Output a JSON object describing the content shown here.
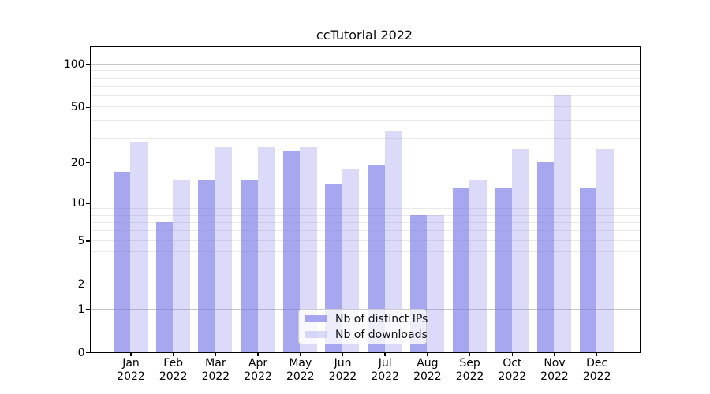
{
  "chart_data": {
    "type": "bar",
    "title": "ccTutorial 2022",
    "categories": [
      "Jan",
      "Feb",
      "Mar",
      "Apr",
      "May",
      "Jun",
      "Jul",
      "Aug",
      "Sep",
      "Oct",
      "Nov",
      "Dec"
    ],
    "category_year": "2022",
    "series": [
      {
        "name": "Nb of distinct IPs",
        "color": "rgba(122,122,232,0.66)",
        "values": [
          17,
          7,
          15,
          15,
          24,
          14,
          19,
          8,
          13,
          13,
          20,
          13
        ]
      },
      {
        "name": "Nb of downloads",
        "color": "rgba(122,122,232,0.27)",
        "values": [
          28,
          15,
          26,
          26,
          26,
          18,
          34,
          8,
          15,
          25,
          61,
          25
        ]
      }
    ],
    "yscale": "log1p",
    "ylim": [
      0,
      130
    ],
    "ytick_labels": [
      100,
      50,
      20,
      10,
      5,
      2,
      1,
      0
    ],
    "major_gridlines": [
      1,
      10,
      100
    ],
    "minor_gridlines": [
      2,
      3,
      4,
      5,
      6,
      7,
      8,
      9,
      20,
      30,
      40,
      50,
      60,
      70,
      80,
      90
    ],
    "grid": true,
    "legend_position": "lower center"
  },
  "colors": {
    "grid_major": "#c6c6c6",
    "grid_minor": "#e9e9e9",
    "spine": "#000000",
    "legend_border": "#cccccc"
  }
}
